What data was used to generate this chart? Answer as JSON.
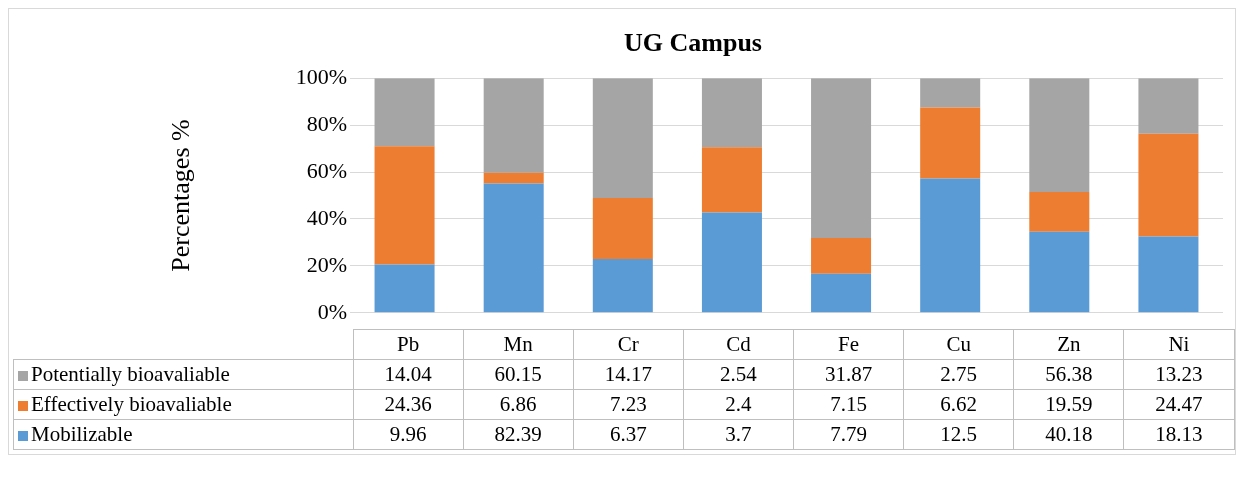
{
  "chart_data": {
    "type": "bar",
    "title": "UG Campus",
    "ylabel": "Percentages %",
    "stacked": true,
    "grid": "y",
    "legend": "bottom",
    "categories": [
      "Pb",
      "Mn",
      "Cr",
      "Cd",
      "Fe",
      "Cu",
      "Zn",
      "Ni"
    ],
    "series": [
      {
        "name": "Mobilizable",
        "color": "#5b9bd5",
        "values": [
          20.6,
          55.1,
          22.9,
          42.8,
          16.6,
          57.2,
          34.6,
          32.5
        ]
      },
      {
        "name": "Effectively bioavaliable",
        "color": "#ed7d31",
        "values": [
          50.4,
          4.6,
          26.0,
          27.8,
          15.3,
          30.3,
          16.9,
          43.8
        ]
      },
      {
        "name": "Potentially bioavaliable",
        "color": "#a5a5a5",
        "values": [
          29.0,
          40.3,
          51.1,
          29.4,
          68.1,
          12.5,
          48.5,
          23.7
        ]
      }
    ],
    "annotations": [
      "14.04",
      "60.15",
      "14.17",
      "2.54",
      "31.87",
      "2.75",
      "56.38",
      "13.23",
      "24.36",
      "6.86",
      "7.23",
      "2.4",
      "7.15",
      "6.62",
      "19.59",
      "24.47",
      "9.96",
      "82.39",
      "6.37",
      "3.7",
      "7.79",
      "12.5",
      "40.18",
      "18.13"
    ],
    "ylim": [
      0,
      100
    ],
    "yticks": [
      {
        "value": 0,
        "label": "0%"
      },
      {
        "value": 20,
        "label": "20%"
      },
      {
        "value": 40,
        "label": "40%"
      },
      {
        "value": 60,
        "label": "60%"
      },
      {
        "value": 80,
        "label": "80%"
      },
      {
        "value": 100,
        "label": "100%"
      }
    ]
  }
}
